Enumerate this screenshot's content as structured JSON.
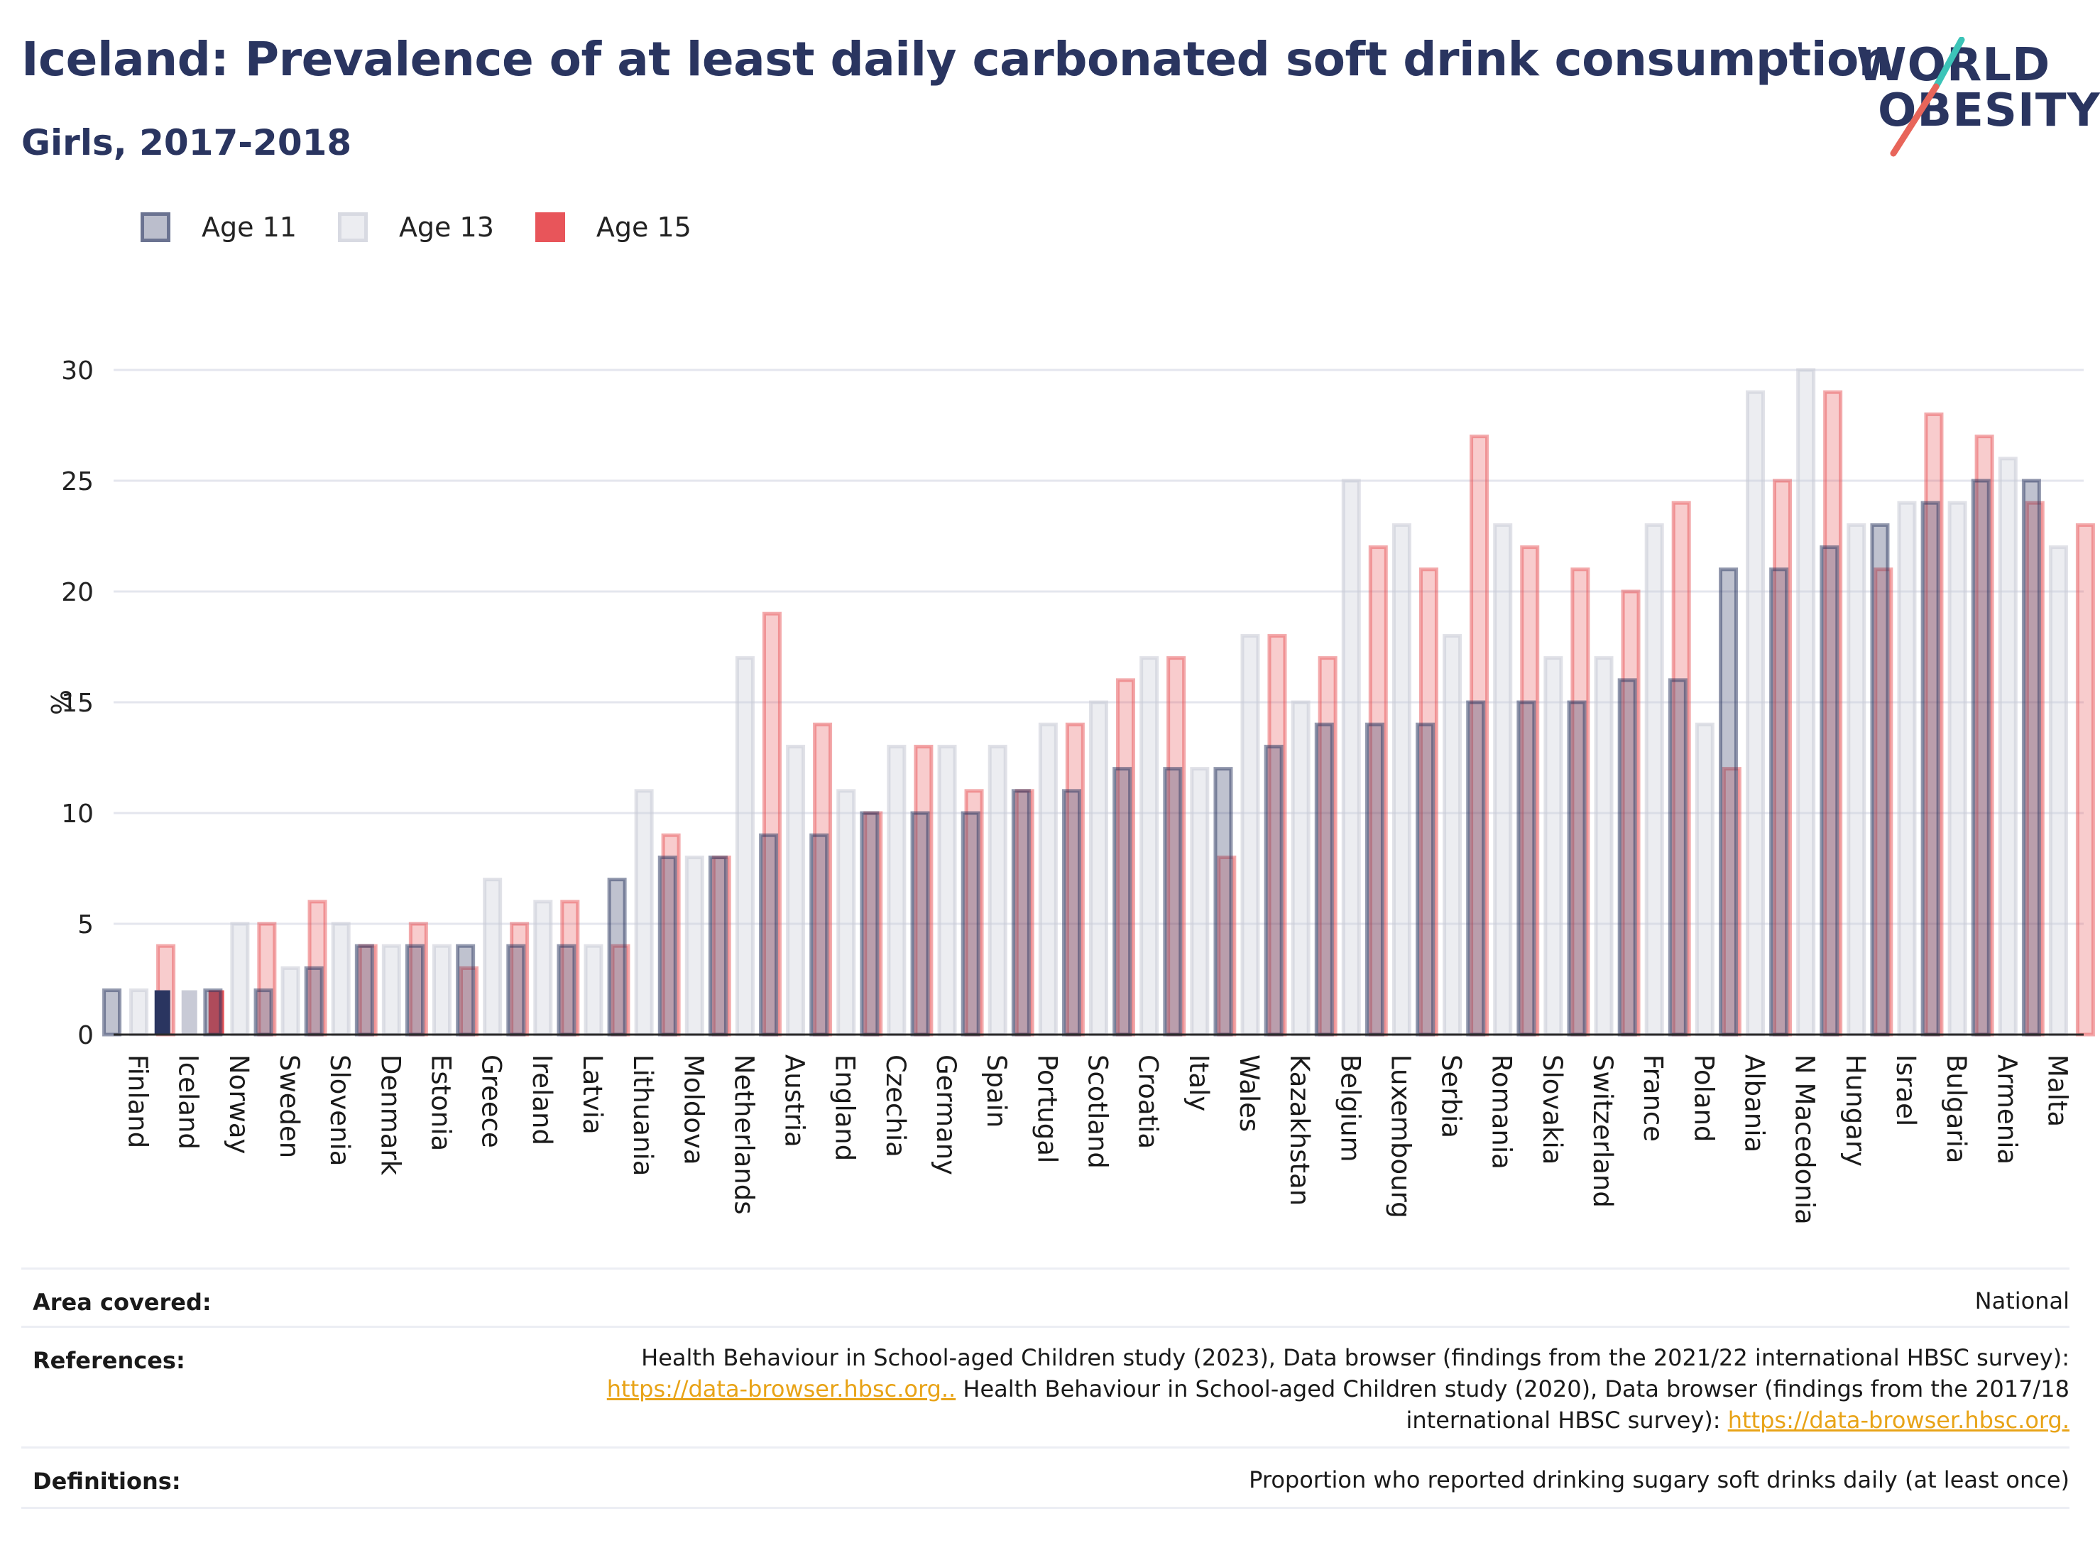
{
  "header": {
    "title": "Iceland: Prevalence of at least daily carbonated soft drink consumption",
    "subtitle": "Girls, 2017-2018"
  },
  "logo": {
    "line1": "WORLD",
    "line2": "OBESITY",
    "accent_teal": "#3cc4b8",
    "accent_red": "#e8655a"
  },
  "legend": [
    {
      "label": "Age 11",
      "color": "#2a3560"
    },
    {
      "label": "Age 13",
      "color": "#c8cad6"
    },
    {
      "label": "Age 15",
      "color": "#e8555a"
    }
  ],
  "colors": {
    "age11": "#2a3560",
    "age13": "#c8cad6",
    "age15": "#e8555a",
    "grid": "#e4e6ee",
    "axis": "#2a2a2a"
  },
  "chart_data": {
    "type": "bar",
    "title": "Iceland: Prevalence of at least daily carbonated soft drink consumption",
    "subtitle": "Girls, 2017-2018",
    "xlabel": "",
    "ylabel": "%",
    "ylim": [
      0,
      31
    ],
    "yticks": [
      0,
      5,
      10,
      15,
      20,
      25,
      30
    ],
    "grid": true,
    "legend_position": "top-left",
    "highlight": "Iceland",
    "categories": [
      "Finland",
      "Iceland",
      "Norway",
      "Sweden",
      "Slovenia",
      "Denmark",
      "Estonia",
      "Greece",
      "Ireland",
      "Latvia",
      "Lithuania",
      "Moldova",
      "Netherlands",
      "Austria",
      "England",
      "Czechia",
      "Germany",
      "Spain",
      "Portugal",
      "Scotland",
      "Croatia",
      "Italy",
      "Wales",
      "Kazakhstan",
      "Belgium",
      "Luxembourg",
      "Serbia",
      "Romania",
      "Slovakia",
      "Switzerland",
      "France",
      "Poland",
      "Albania",
      "N Macedonia",
      "Hungary",
      "Israel",
      "Bulgaria",
      "Armenia",
      "Malta"
    ],
    "series": [
      {
        "name": "Age 11",
        "values": [
          2,
          2,
          2,
          2,
          3,
          4,
          4,
          4,
          4,
          4,
          7,
          8,
          8,
          9,
          9,
          10,
          10,
          10,
          11,
          11,
          12,
          12,
          12,
          13,
          14,
          14,
          14,
          15,
          15,
          15,
          16,
          16,
          21,
          21,
          22,
          23,
          24,
          25,
          25
        ]
      },
      {
        "name": "Age 13",
        "values": [
          2,
          2,
          5,
          3,
          5,
          4,
          4,
          7,
          6,
          4,
          11,
          8,
          17,
          13,
          11,
          13,
          13,
          13,
          14,
          15,
          17,
          12,
          18,
          15,
          25,
          23,
          18,
          23,
          17,
          17,
          23,
          14,
          29,
          30,
          23,
          24,
          24,
          26,
          22
        ]
      },
      {
        "name": "Age 15",
        "values": [
          4,
          2,
          5,
          6,
          4,
          5,
          3,
          5,
          6,
          4,
          9,
          8,
          19,
          14,
          10,
          13,
          11,
          11,
          14,
          16,
          17,
          8,
          18,
          17,
          22,
          21,
          27,
          22,
          21,
          20,
          24,
          12,
          25,
          29,
          21,
          28,
          27,
          24,
          23
        ]
      }
    ]
  },
  "footer": {
    "area_key": "Area covered:",
    "area_val": "National",
    "ref_key": "References:",
    "ref_line1": "Health Behaviour in School-aged Children study (2023), Data browser (findings from the 2021/22 international HBSC survey):",
    "ref_link1": "https://data-browser.hbsc.org..",
    "ref_line2b": " Health Behaviour in School-aged Children study (2020), Data browser (findings from the 2017/18",
    "ref_line3a": "international HBSC survey): ",
    "ref_link2": "https://data-browser.hbsc.org.",
    "def_key": "Definitions:",
    "def_val": "Proportion who reported drinking sugary soft drinks daily (at least once)"
  }
}
